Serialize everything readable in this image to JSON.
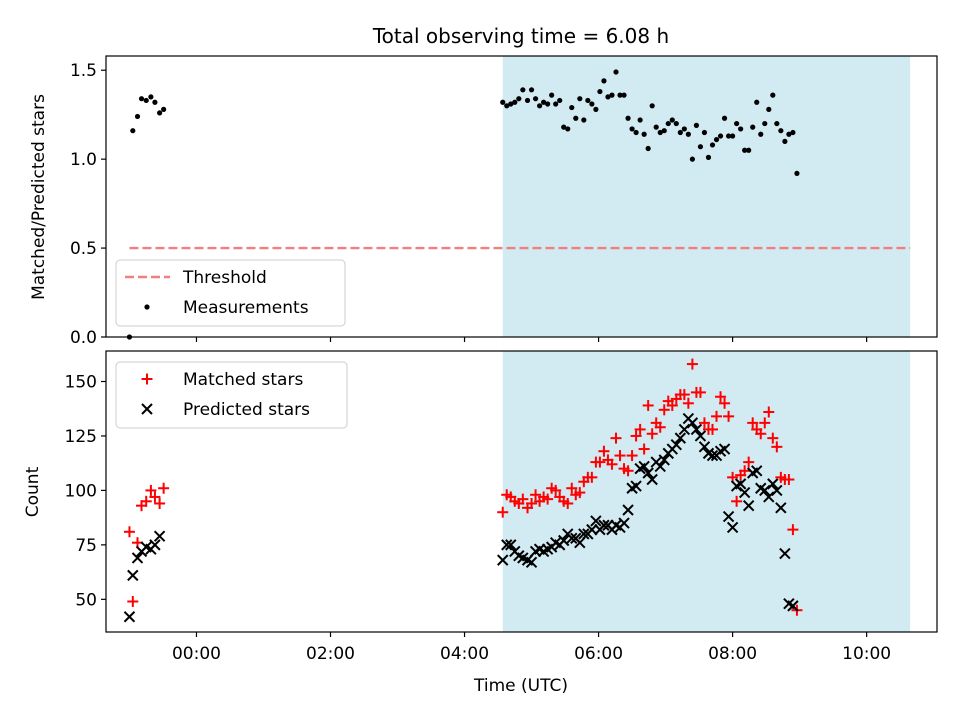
{
  "chart_data": [
    {
      "type": "scatter",
      "title": "Total observing time = 6.08 h",
      "xlabel": "",
      "ylabel": "Matched/Predicted stars",
      "x_unit": "hours UTC",
      "xlim": [
        -1.35,
        11.05
      ],
      "ylim": [
        0,
        1.58
      ],
      "yticks": [
        0.0,
        0.5,
        1.0,
        1.5
      ],
      "ytick_labels": [
        "0.0",
        "0.5",
        "1.0",
        "1.5"
      ],
      "xticks": [
        0,
        2,
        4,
        6,
        8,
        10
      ],
      "shaded_interval": [
        4.57,
        10.65
      ],
      "shade_color": "#add8e6",
      "threshold": {
        "name": "Threshold",
        "value": 0.5,
        "x_range": [
          -1.0,
          10.65
        ],
        "color": "#f08080"
      },
      "legend": {
        "position": "lower-left",
        "entries": [
          "Threshold",
          "Measurements"
        ]
      },
      "series": [
        {
          "name": "Measurements",
          "color": "#000000",
          "marker": "dot",
          "points": [
            [
              -1.0,
              0.0
            ],
            [
              -0.95,
              1.16
            ],
            [
              -0.88,
              1.24
            ],
            [
              -0.82,
              1.34
            ],
            [
              -0.75,
              1.33
            ],
            [
              -0.68,
              1.35
            ],
            [
              -0.62,
              1.32
            ],
            [
              -0.55,
              1.26
            ],
            [
              -0.49,
              1.28
            ],
            [
              4.57,
              1.32
            ],
            [
              4.63,
              1.3
            ],
            [
              4.69,
              1.31
            ],
            [
              4.75,
              1.32
            ],
            [
              4.81,
              1.34
            ],
            [
              4.87,
              1.39
            ],
            [
              4.94,
              1.33
            ],
            [
              5.0,
              1.39
            ],
            [
              5.06,
              1.34
            ],
            [
              5.12,
              1.3
            ],
            [
              5.18,
              1.32
            ],
            [
              5.24,
              1.31
            ],
            [
              5.3,
              1.36
            ],
            [
              5.36,
              1.31
            ],
            [
              5.42,
              1.33
            ],
            [
              5.48,
              1.18
            ],
            [
              5.54,
              1.17
            ],
            [
              5.6,
              1.29
            ],
            [
              5.66,
              1.23
            ],
            [
              5.72,
              1.34
            ],
            [
              5.78,
              1.22
            ],
            [
              5.84,
              1.33
            ],
            [
              5.9,
              1.31
            ],
            [
              5.96,
              1.28
            ],
            [
              6.02,
              1.38
            ],
            [
              6.08,
              1.44
            ],
            [
              6.14,
              1.35
            ],
            [
              6.2,
              1.36
            ],
            [
              6.26,
              1.49
            ],
            [
              6.32,
              1.36
            ],
            [
              6.38,
              1.36
            ],
            [
              6.44,
              1.23
            ],
            [
              6.5,
              1.17
            ],
            [
              6.56,
              1.15
            ],
            [
              6.62,
              1.22
            ],
            [
              6.68,
              1.14
            ],
            [
              6.74,
              1.06
            ],
            [
              6.8,
              1.3
            ],
            [
              6.86,
              1.18
            ],
            [
              6.92,
              1.15
            ],
            [
              6.98,
              1.16
            ],
            [
              7.04,
              1.2
            ],
            [
              7.1,
              1.22
            ],
            [
              7.16,
              1.2
            ],
            [
              7.22,
              1.15
            ],
            [
              7.28,
              1.17
            ],
            [
              7.34,
              1.14
            ],
            [
              7.4,
              1.0
            ],
            [
              7.46,
              1.19
            ],
            [
              7.52,
              1.07
            ],
            [
              7.58,
              1.15
            ],
            [
              7.64,
              1.01
            ],
            [
              7.7,
              1.08
            ],
            [
              7.76,
              1.11
            ],
            [
              7.82,
              1.13
            ],
            [
              7.88,
              1.23
            ],
            [
              7.94,
              1.13
            ],
            [
              8.0,
              1.13
            ],
            [
              8.06,
              1.2
            ],
            [
              8.12,
              1.17
            ],
            [
              8.18,
              1.05
            ],
            [
              8.24,
              1.05
            ],
            [
              8.3,
              1.18
            ],
            [
              8.36,
              1.32
            ],
            [
              8.42,
              1.14
            ],
            [
              8.48,
              1.2
            ],
            [
              8.54,
              1.28
            ],
            [
              8.6,
              1.36
            ],
            [
              8.66,
              1.2
            ],
            [
              8.72,
              1.16
            ],
            [
              8.78,
              1.1
            ],
            [
              8.84,
              1.14
            ],
            [
              8.9,
              1.15
            ],
            [
              8.96,
              0.92
            ]
          ]
        }
      ]
    },
    {
      "type": "scatter",
      "title": "",
      "xlabel": "Time (UTC)",
      "ylabel": "Count",
      "x_unit": "hours UTC",
      "xlim": [
        -1.35,
        11.05
      ],
      "ylim": [
        35,
        164
      ],
      "yticks": [
        50,
        75,
        100,
        125,
        150
      ],
      "ytick_labels": [
        "50",
        "75",
        "100",
        "125",
        "150"
      ],
      "xticks": [
        0,
        2,
        4,
        6,
        8,
        10
      ],
      "xtick_labels": [
        "00:00",
        "02:00",
        "04:00",
        "06:00",
        "08:00",
        "10:00"
      ],
      "shaded_interval": [
        4.57,
        10.65
      ],
      "shade_color": "#add8e6",
      "legend": {
        "position": "upper-left",
        "entries": [
          "Matched stars",
          "Predicted stars"
        ]
      },
      "series": [
        {
          "name": "Matched stars",
          "color": "#ff0000",
          "marker": "plus",
          "points": [
            [
              -1.0,
              81
            ],
            [
              -0.95,
              49
            ],
            [
              -0.88,
              76
            ],
            [
              -0.82,
              93
            ],
            [
              -0.75,
              95
            ],
            [
              -0.68,
              100
            ],
            [
              -0.62,
              97
            ],
            [
              -0.55,
              94
            ],
            [
              -0.49,
              101
            ],
            [
              4.57,
              90
            ],
            [
              4.63,
              98
            ],
            [
              4.69,
              97
            ],
            [
              4.75,
              95
            ],
            [
              4.81,
              94
            ],
            [
              4.87,
              96
            ],
            [
              4.94,
              92
            ],
            [
              5.0,
              94
            ],
            [
              5.06,
              98
            ],
            [
              5.12,
              95
            ],
            [
              5.18,
              97
            ],
            [
              5.24,
              96
            ],
            [
              5.3,
              101
            ],
            [
              5.36,
              100
            ],
            [
              5.42,
              97
            ],
            [
              5.48,
              95
            ],
            [
              5.54,
              94
            ],
            [
              5.6,
              101
            ],
            [
              5.66,
              98
            ],
            [
              5.72,
              99
            ],
            [
              5.78,
              104
            ],
            [
              5.84,
              106
            ],
            [
              5.9,
              106
            ],
            [
              5.96,
              113
            ],
            [
              6.02,
              113
            ],
            [
              6.08,
              118
            ],
            [
              6.14,
              114
            ],
            [
              6.2,
              112
            ],
            [
              6.26,
              124
            ],
            [
              6.32,
              116
            ],
            [
              6.38,
              110
            ],
            [
              6.44,
              109
            ],
            [
              6.5,
              116
            ],
            [
              6.56,
              125
            ],
            [
              6.62,
              128
            ],
            [
              6.68,
              119
            ],
            [
              6.74,
              139
            ],
            [
              6.8,
              126
            ],
            [
              6.86,
              131
            ],
            [
              6.92,
              129
            ],
            [
              6.98,
              137
            ],
            [
              7.04,
              141
            ],
            [
              7.1,
              139
            ],
            [
              7.16,
              142
            ],
            [
              7.22,
              144
            ],
            [
              7.28,
              144
            ],
            [
              7.34,
              140
            ],
            [
              7.4,
              158
            ],
            [
              7.46,
              145
            ],
            [
              7.52,
              145
            ],
            [
              7.58,
              131
            ],
            [
              7.64,
              128
            ],
            [
              7.7,
              128
            ],
            [
              7.76,
              134
            ],
            [
              7.82,
              143
            ],
            [
              7.88,
              140
            ],
            [
              7.94,
              134
            ],
            [
              8.0,
              106
            ],
            [
              8.06,
              95
            ],
            [
              8.12,
              107
            ],
            [
              8.18,
              109
            ],
            [
              8.24,
              113
            ],
            [
              8.3,
              131
            ],
            [
              8.36,
              128
            ],
            [
              8.42,
              126
            ],
            [
              8.48,
              131
            ],
            [
              8.54,
              136
            ],
            [
              8.6,
              124
            ],
            [
              8.66,
              120
            ],
            [
              8.72,
              106
            ],
            [
              8.78,
              105
            ],
            [
              8.84,
              105
            ],
            [
              8.9,
              82
            ],
            [
              8.96,
              45
            ]
          ]
        },
        {
          "name": "Predicted stars",
          "color": "#000000",
          "marker": "x",
          "points": [
            [
              -1.0,
              42
            ],
            [
              -0.95,
              61
            ],
            [
              -0.88,
              69
            ],
            [
              -0.82,
              72
            ],
            [
              -0.75,
              74
            ],
            [
              -0.68,
              73
            ],
            [
              -0.62,
              75
            ],
            [
              -0.55,
              79
            ],
            [
              4.57,
              68
            ],
            [
              4.63,
              75
            ],
            [
              4.69,
              75
            ],
            [
              4.75,
              72
            ],
            [
              4.81,
              70
            ],
            [
              4.87,
              69
            ],
            [
              4.94,
              68
            ],
            [
              5.0,
              67
            ],
            [
              5.06,
              72
            ],
            [
              5.12,
              73
            ],
            [
              5.18,
              72
            ],
            [
              5.24,
              73
            ],
            [
              5.3,
              74
            ],
            [
              5.36,
              76
            ],
            [
              5.42,
              75
            ],
            [
              5.48,
              77
            ],
            [
              5.54,
              80
            ],
            [
              5.6,
              78
            ],
            [
              5.66,
              78
            ],
            [
              5.72,
              76
            ],
            [
              5.78,
              80
            ],
            [
              5.84,
              80
            ],
            [
              5.9,
              82
            ],
            [
              5.96,
              86
            ],
            [
              6.02,
              82
            ],
            [
              6.08,
              84
            ],
            [
              6.14,
              84
            ],
            [
              6.2,
              82
            ],
            [
              6.26,
              84
            ],
            [
              6.32,
              83
            ],
            [
              6.38,
              85
            ],
            [
              6.44,
              91
            ],
            [
              6.5,
              101
            ],
            [
              6.56,
              102
            ],
            [
              6.62,
              110
            ],
            [
              6.68,
              111
            ],
            [
              6.74,
              108
            ],
            [
              6.8,
              105
            ],
            [
              6.86,
              113
            ],
            [
              6.92,
              111
            ],
            [
              6.98,
              114
            ],
            [
              7.04,
              117
            ],
            [
              7.1,
              119
            ],
            [
              7.16,
              121
            ],
            [
              7.22,
              124
            ],
            [
              7.28,
              128
            ],
            [
              7.34,
              133
            ],
            [
              7.4,
              131
            ],
            [
              7.46,
              128
            ],
            [
              7.52,
              125
            ],
            [
              7.58,
              120
            ],
            [
              7.64,
              117
            ],
            [
              7.7,
              116
            ],
            [
              7.76,
              116
            ],
            [
              7.82,
              118
            ],
            [
              7.88,
              119
            ],
            [
              7.94,
              88
            ],
            [
              8.0,
              83
            ],
            [
              8.06,
              102
            ],
            [
              8.12,
              103
            ],
            [
              8.18,
              99
            ],
            [
              8.24,
              93
            ],
            [
              8.3,
              108
            ],
            [
              8.36,
              109
            ],
            [
              8.42,
              101
            ],
            [
              8.48,
              100
            ],
            [
              8.54,
              97
            ],
            [
              8.6,
              103
            ],
            [
              8.66,
              100
            ],
            [
              8.72,
              92
            ],
            [
              8.78,
              71
            ],
            [
              8.84,
              48
            ],
            [
              8.9,
              47
            ]
          ]
        }
      ]
    }
  ]
}
